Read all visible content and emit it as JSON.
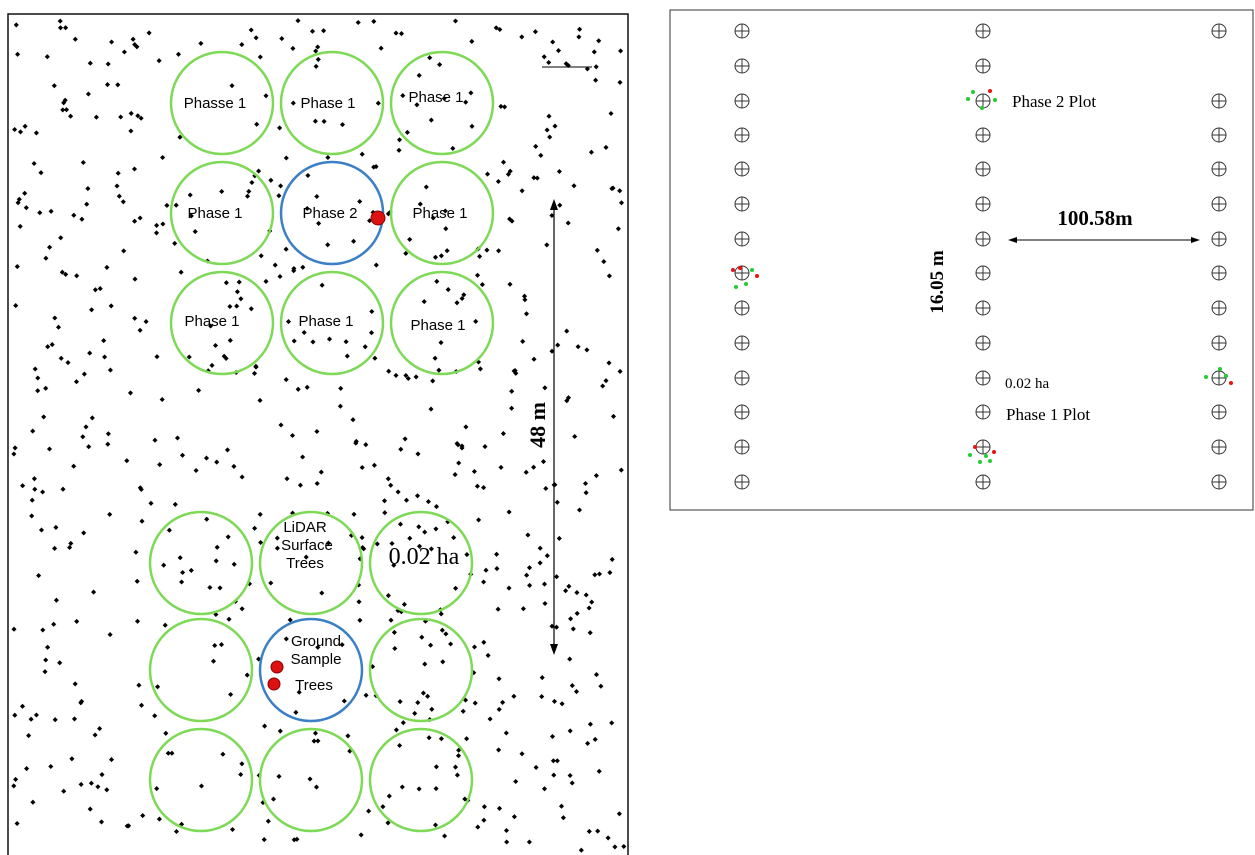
{
  "left_panel": {
    "group_a_labels": [
      "Phasse 1",
      "Phase 1",
      "Phase 1",
      "Phase 1",
      "Phase 2",
      "Phase 1",
      "Phase 1",
      "Phase 1",
      "Phase 1"
    ],
    "lidar_label_lines": [
      "LiDAR",
      "Surface",
      "Trees"
    ],
    "area_label": "0.02 ha",
    "ground_label_lines": [
      "Ground",
      "Sample",
      "Trees"
    ],
    "distance_label": "48 m",
    "colors": {
      "phase1_circle": "#7ed957",
      "phase2_circle": "#3b7fc4",
      "tree_point": "#000000",
      "sample_tree": "#dd1111"
    }
  },
  "right_panel": {
    "phase2_label": "Phase 2 Plot",
    "spacing_label": "100.58m",
    "vertical_spacing_label": "16.05 m",
    "area_label": "0.02 ha",
    "phase1_label": "Phase 1 Plot",
    "plot_marker_icon": "circled-plus-icon",
    "colors": {
      "marker": "#333333",
      "green_points": "#22cc33",
      "red_points": "#ee1111"
    }
  }
}
